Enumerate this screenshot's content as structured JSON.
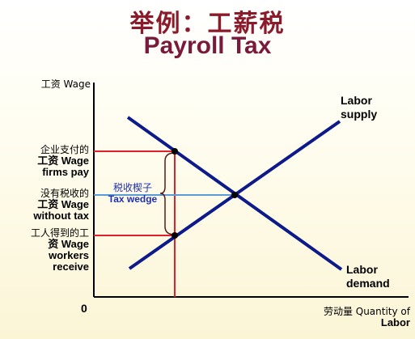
{
  "title": {
    "zh": "举例：工薪税",
    "en": "Payroll Tax"
  },
  "y_axis_label": "工资 Wage",
  "origin_label": "0",
  "x_axis_label": {
    "line1": "劳动量 Quantity of",
    "line2": "Labor"
  },
  "wage_firms_pay": {
    "line1": "企业支付的",
    "line2": "工资 Wage",
    "line3": "firms pay"
  },
  "wage_without_tax": {
    "line1": "没有税收的",
    "line2": "工资 Wage",
    "line3": "without tax"
  },
  "wage_workers_receive": {
    "line1": "工人得到的工",
    "line2": "资 Wage",
    "line3": "workers",
    "line4": "receive"
  },
  "tax_wedge": {
    "zh": "税收楔子",
    "en": "Tax wedge"
  },
  "supply_label": {
    "line1": "Labor",
    "line2": "supply"
  },
  "demand_label": {
    "line1": "Labor",
    "line2": "demand"
  },
  "colors": {
    "curves": "#0d1a8a",
    "wedge_lines": "#e0202a",
    "equilibrium_line": "#5b9bd5",
    "title": "#8b1a2b"
  }
}
